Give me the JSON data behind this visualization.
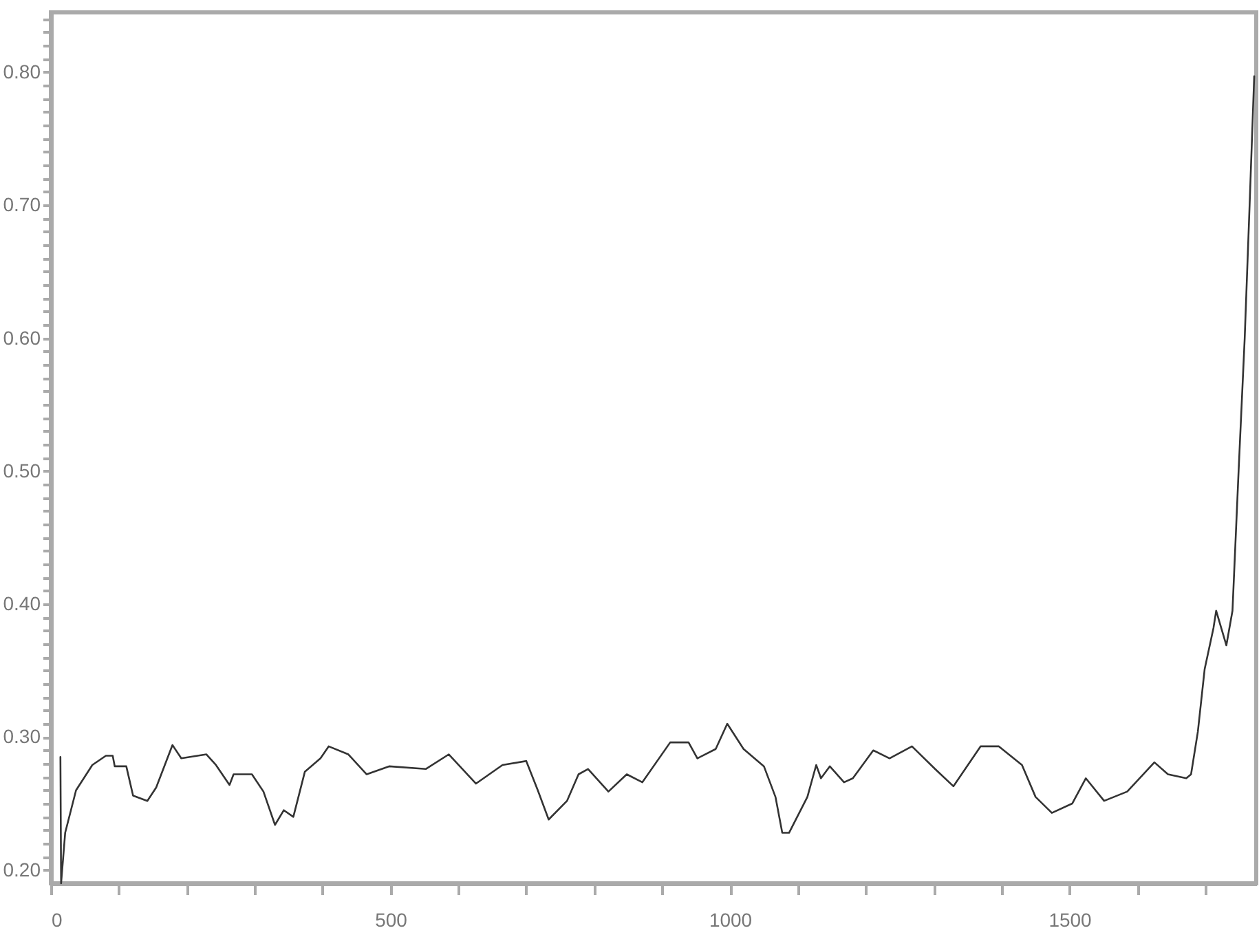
{
  "chart_data": {
    "type": "line",
    "x": [
      14,
      15,
      21,
      37,
      61,
      81,
      91,
      94,
      111,
      121,
      142,
      155,
      179,
      192,
      229,
      243,
      263,
      269,
      296,
      313,
      330,
      343,
      357,
      374,
      397,
      409,
      438,
      465,
      498,
      552,
      586,
      626,
      665,
      700,
      717,
      733,
      760,
      777,
      791,
      821,
      848,
      871,
      912,
      939,
      952,
      979,
      996,
      1020,
      1050,
      1067,
      1077,
      1087,
      1114,
      1127,
      1134,
      1147,
      1168,
      1181,
      1211,
      1235,
      1268,
      1302,
      1329,
      1369,
      1396,
      1430,
      1450,
      1474,
      1504,
      1524,
      1551,
      1585,
      1625,
      1645,
      1672,
      1679,
      1689,
      1699,
      1712,
      1716,
      1731,
      1740,
      1749,
      1758,
      1765,
      1772
    ],
    "series": [
      {
        "color": "#333333",
        "values": [
          0.285,
          0.19,
          0.228,
          0.26,
          0.279,
          0.286,
          0.286,
          0.278,
          0.278,
          0.256,
          0.252,
          0.262,
          0.294,
          0.284,
          0.287,
          0.279,
          0.264,
          0.272,
          0.272,
          0.259,
          0.234,
          0.245,
          0.24,
          0.274,
          0.284,
          0.293,
          0.287,
          0.272,
          0.278,
          0.276,
          0.287,
          0.265,
          0.279,
          0.282,
          0.26,
          0.238,
          0.252,
          0.272,
          0.276,
          0.259,
          0.272,
          0.266,
          0.296,
          0.296,
          0.284,
          0.291,
          0.31,
          0.291,
          0.278,
          0.255,
          0.228,
          0.228,
          0.255,
          0.279,
          0.269,
          0.278,
          0.266,
          0.269,
          0.29,
          0.284,
          0.293,
          0.276,
          0.263,
          0.293,
          0.293,
          0.279,
          0.255,
          0.243,
          0.25,
          0.269,
          0.252,
          0.259,
          0.281,
          0.272,
          0.269,
          0.272,
          0.304,
          0.351,
          0.382,
          0.395,
          0.369,
          0.395,
          0.5,
          0.6,
          0.697,
          0.797
        ]
      }
    ],
    "xlim": [
      0,
      1775
    ],
    "xticks": [
      0,
      {
        "value": 100,
        "label": null
      },
      {
        "value": 200,
        "label": null
      },
      {
        "value": 300,
        "label": null
      },
      {
        "value": 400,
        "label": null
      },
      500,
      {
        "value": 600,
        "label": null
      },
      {
        "value": 700,
        "label": null
      },
      {
        "value": 800,
        "label": null
      },
      {
        "value": 900,
        "label": null
      },
      1000,
      {
        "value": 1100,
        "label": null
      },
      {
        "value": 1200,
        "label": null
      },
      {
        "value": 1300,
        "label": null
      },
      {
        "value": 1400,
        "label": null
      },
      1500,
      {
        "value": 1600,
        "label": null
      },
      {
        "value": 1700,
        "label": null
      }
    ],
    "ylim": [
      0.19,
      0.845
    ],
    "yticks": [
      {
        "value": 0.2,
        "label": "0.20"
      },
      {
        "value": 0.21,
        "label": null
      },
      {
        "value": 0.22,
        "label": null
      },
      {
        "value": 0.23,
        "label": null
      },
      {
        "value": 0.24,
        "label": null
      },
      {
        "value": 0.25,
        "label": null
      },
      {
        "value": 0.26,
        "label": null
      },
      {
        "value": 0.27,
        "label": null
      },
      {
        "value": 0.28,
        "label": null
      },
      {
        "value": 0.29,
        "label": null
      },
      {
        "value": 0.3,
        "label": "0.30"
      },
      {
        "value": 0.31,
        "label": null
      },
      {
        "value": 0.32,
        "label": null
      },
      {
        "value": 0.33,
        "label": null
      },
      {
        "value": 0.34,
        "label": null
      },
      {
        "value": 0.35,
        "label": null
      },
      {
        "value": 0.36,
        "label": null
      },
      {
        "value": 0.37,
        "label": null
      },
      {
        "value": 0.38,
        "label": null
      },
      {
        "value": 0.39,
        "label": null
      },
      {
        "value": 0.4,
        "label": "0.40"
      },
      {
        "value": 0.41,
        "label": null
      },
      {
        "value": 0.42,
        "label": null
      },
      {
        "value": 0.43,
        "label": null
      },
      {
        "value": 0.44,
        "label": null
      },
      {
        "value": 0.45,
        "label": null
      },
      {
        "value": 0.46,
        "label": null
      },
      {
        "value": 0.47,
        "label": null
      },
      {
        "value": 0.48,
        "label": null
      },
      {
        "value": 0.49,
        "label": null
      },
      {
        "value": 0.5,
        "label": "0.50"
      },
      {
        "value": 0.51,
        "label": null
      },
      {
        "value": 0.52,
        "label": null
      },
      {
        "value": 0.53,
        "label": null
      },
      {
        "value": 0.54,
        "label": null
      },
      {
        "value": 0.55,
        "label": null
      },
      {
        "value": 0.56,
        "label": null
      },
      {
        "value": 0.57,
        "label": null
      },
      {
        "value": 0.58,
        "label": null
      },
      {
        "value": 0.59,
        "label": null
      },
      {
        "value": 0.6,
        "label": "0.60"
      },
      {
        "value": 0.61,
        "label": null
      },
      {
        "value": 0.62,
        "label": null
      },
      {
        "value": 0.63,
        "label": null
      },
      {
        "value": 0.64,
        "label": null
      },
      {
        "value": 0.65,
        "label": null
      },
      {
        "value": 0.66,
        "label": null
      },
      {
        "value": 0.67,
        "label": null
      },
      {
        "value": 0.68,
        "label": null
      },
      {
        "value": 0.69,
        "label": null
      },
      {
        "value": 0.7,
        "label": "0.70"
      },
      {
        "value": 0.71,
        "label": null
      },
      {
        "value": 0.72,
        "label": null
      },
      {
        "value": 0.73,
        "label": null
      },
      {
        "value": 0.74,
        "label": null
      },
      {
        "value": 0.75,
        "label": null
      },
      {
        "value": 0.76,
        "label": null
      },
      {
        "value": 0.77,
        "label": null
      },
      {
        "value": 0.78,
        "label": null
      },
      {
        "value": 0.79,
        "label": null
      },
      {
        "value": 0.8,
        "label": "0.80"
      },
      {
        "value": 0.81,
        "label": null
      },
      {
        "value": 0.82,
        "label": null
      },
      {
        "value": 0.83,
        "label": null
      },
      {
        "value": 0.84,
        "label": null
      }
    ],
    "grid": false,
    "marker": "none",
    "line_style": "solid"
  }
}
